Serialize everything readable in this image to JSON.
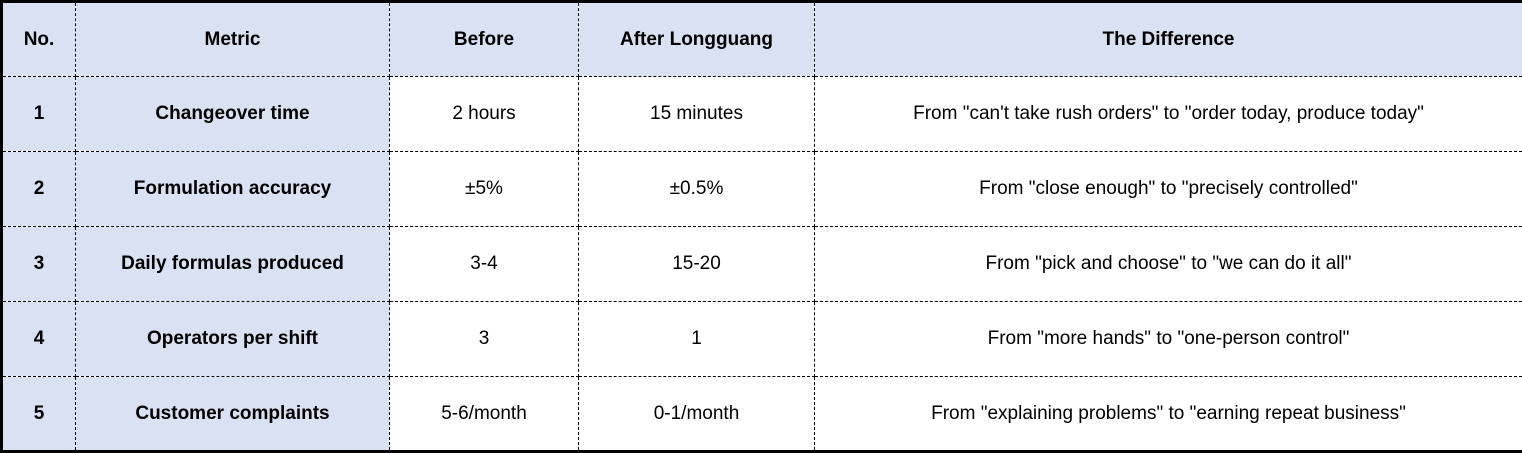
{
  "chart_data": {
    "type": "table",
    "columns": [
      "No.",
      "Metric",
      "Before",
      "After Longguang",
      "The Difference"
    ],
    "rows": [
      [
        "1",
        "Changeover time",
        "2 hours",
        "15 minutes",
        "From \"can't take rush orders\" to \"order today, produce today\""
      ],
      [
        "2",
        "Formulation accuracy",
        "±5%",
        "±0.5%",
        "From \"close enough\" to \"precisely controlled\""
      ],
      [
        "3",
        "Daily formulas produced",
        "3-4",
        "15-20",
        "From \"pick and choose\" to \"we can do it all\""
      ],
      [
        "4",
        "Operators per shift",
        "3",
        "1",
        "From \"more hands\" to \"one-person control\""
      ],
      [
        "5",
        "Customer complaints",
        "5-6/month",
        "0-1/month",
        "From \"explaining problems\" to \"earning repeat business\""
      ]
    ],
    "layout": {
      "grid": "dashed",
      "outer_border": "solid",
      "header_shaded": true,
      "shaded_columns": [
        "No.",
        "Metric"
      ]
    }
  },
  "colors": {
    "header_bg": "#d9e2f3",
    "label_col_bg": "#d9e2f3",
    "body_bg": "#ffffff",
    "border_color": "#000000",
    "text_color": "#000000"
  }
}
